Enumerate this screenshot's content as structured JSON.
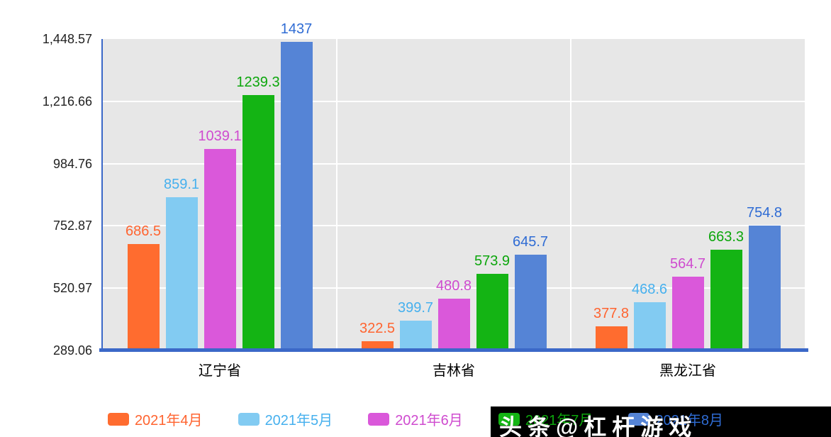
{
  "chart_data": {
    "type": "bar",
    "title": "",
    "categories": [
      "辽宁省",
      "吉林省",
      "黑龙江省"
    ],
    "series": [
      {
        "name": "2021年4月",
        "color": "#ff6c2f",
        "label_color": "#ff6430",
        "values": [
          686.5,
          322.5,
          377.8
        ]
      },
      {
        "name": "2021年5月",
        "color": "#82cbf2",
        "label_color": "#46b0ee",
        "values": [
          859.1,
          399.7,
          468.6
        ]
      },
      {
        "name": "2021年6月",
        "color": "#da58da",
        "label_color": "#cf4bcf",
        "values": [
          1039.1,
          480.8,
          564.7
        ]
      },
      {
        "name": "2021年7月",
        "color": "#14b414",
        "label_color": "#0ca60c",
        "values": [
          1239.3,
          573.9,
          663.3
        ]
      },
      {
        "name": "2021年8月",
        "color": "#5584d6",
        "label_color": "#2f6cd4",
        "values": [
          1437,
          645.7,
          754.8
        ]
      }
    ],
    "yticks": [
      {
        "label": "1,448.57",
        "value": 1448.57
      },
      {
        "label": "1,216.66",
        "value": 1216.66
      },
      {
        "label": "984.76",
        "value": 984.76
      },
      {
        "label": "752.87",
        "value": 752.87
      },
      {
        "label": "520.97",
        "value": 520.97
      },
      {
        "label": "289.06",
        "value": 289.06
      }
    ],
    "ylim": [
      289.06,
      1448.57
    ],
    "grid": true,
    "legend_position": "bottom"
  },
  "watermark": {
    "text": "头条@杠杆游戏"
  },
  "style": {
    "plot_bg": "#e7e7e7",
    "grid_color": "#ffffff",
    "axis_color": "#3b68c8",
    "tick_label_color": "#222222",
    "category_label_color": "#000000",
    "watermark_bg": "#000000",
    "watermark_fg": "#ffffff"
  }
}
